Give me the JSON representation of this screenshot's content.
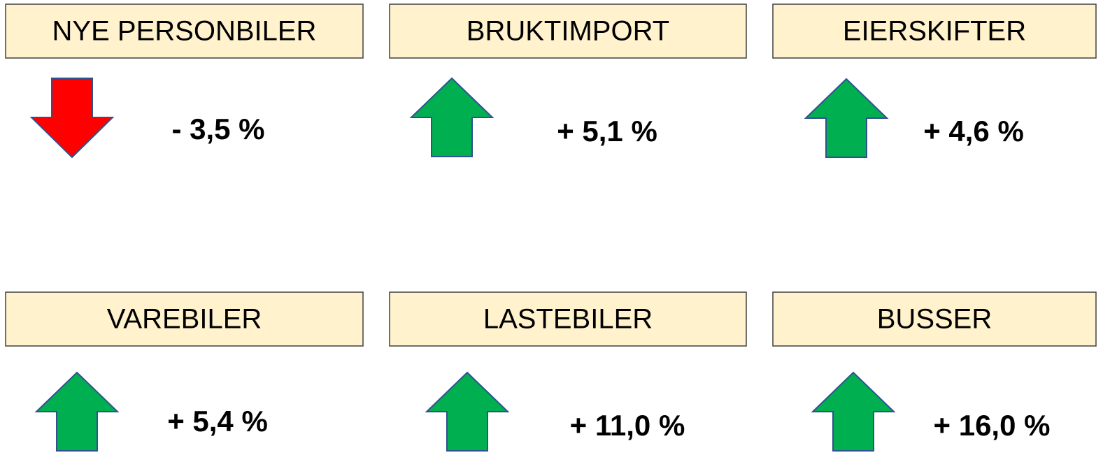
{
  "items": [
    {
      "label": "NYE PERSONBILER",
      "change": "- 3,5 %",
      "arrow": "down",
      "color": "#ff0000"
    },
    {
      "label": "BRUKTIMPORT",
      "change": "+ 5,1 %",
      "arrow": "up",
      "color": "#00b050"
    },
    {
      "label": "EIERSKIFTER",
      "change": "+ 4,6 %",
      "arrow": "up",
      "color": "#00b050"
    },
    {
      "label": "VAREBILER",
      "change": "+ 5,4 %",
      "arrow": "up",
      "color": "#00b050"
    },
    {
      "label": "LASTEBILER",
      "change": "+ 11,0 %",
      "arrow": "up",
      "color": "#00b050"
    },
    {
      "label": "BUSSER",
      "change": "+ 16,0 %",
      "arrow": "up",
      "color": "#00b050"
    }
  ]
}
